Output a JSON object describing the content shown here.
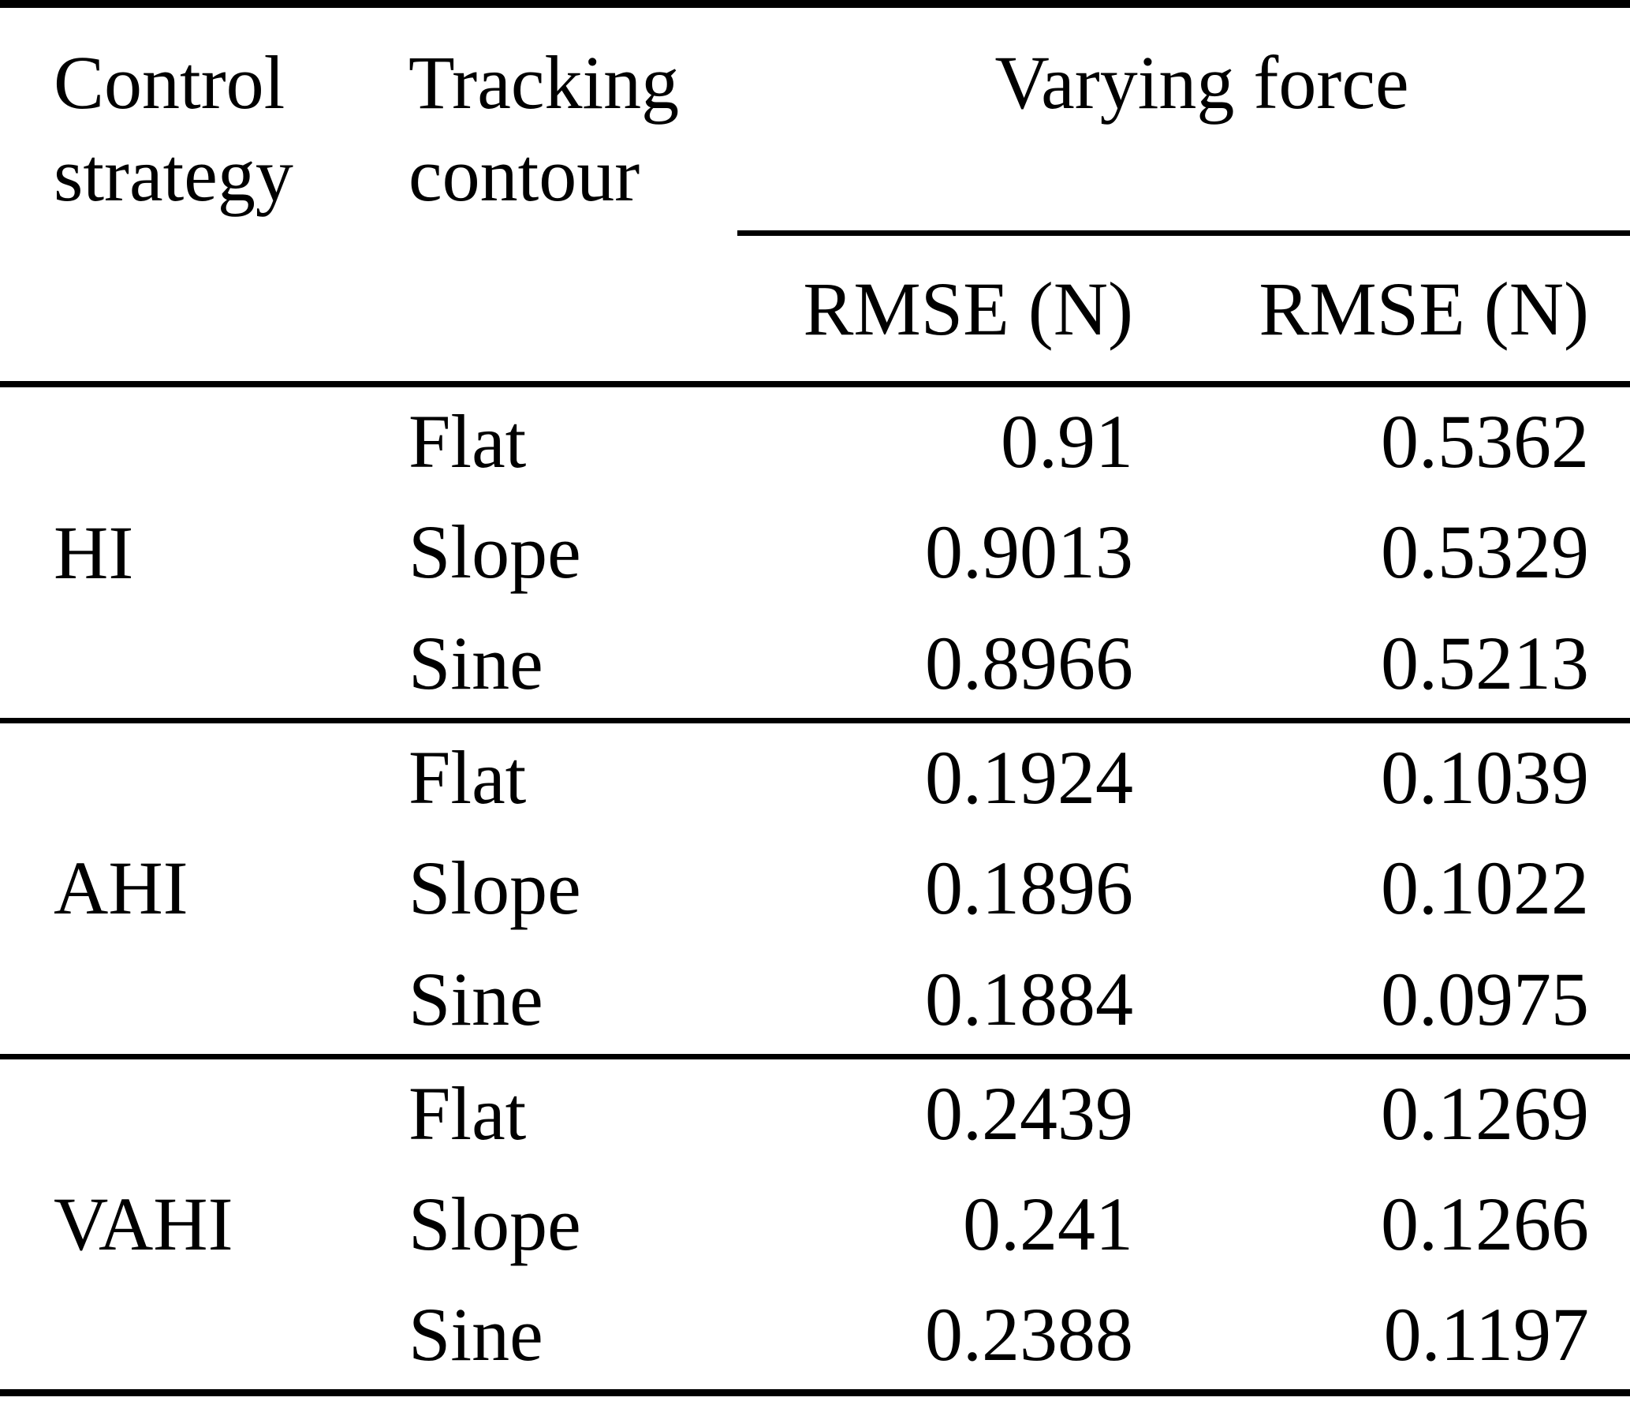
{
  "page": {
    "background_color": "#ffffff",
    "text_color": "#000000",
    "rule_color": "#000000"
  },
  "table": {
    "header": {
      "control_strategy": {
        "line1": "Control",
        "line2": "strategy"
      },
      "tracking_contour": {
        "line1": "Tracking",
        "line2": "contour"
      },
      "group_label": "Varying force",
      "sub_columns": [
        {
          "label": "RMSE (N)"
        },
        {
          "label": "RMSE (N)"
        }
      ]
    },
    "sections": [
      {
        "strategy": "HI",
        "rows": [
          {
            "contour": "Flat",
            "rmse_1": "0.91",
            "rmse_2": "0.5362"
          },
          {
            "contour": "Slope",
            "rmse_1": "0.9013",
            "rmse_2": "0.5329"
          },
          {
            "contour": "Sine",
            "rmse_1": "0.8966",
            "rmse_2": "0.5213"
          }
        ]
      },
      {
        "strategy": "AHI",
        "rows": [
          {
            "contour": "Flat",
            "rmse_1": "0.1924",
            "rmse_2": "0.1039"
          },
          {
            "contour": "Slope",
            "rmse_1": "0.1896",
            "rmse_2": "0.1022"
          },
          {
            "contour": "Sine",
            "rmse_1": "0.1884",
            "rmse_2": "0.0975"
          }
        ]
      },
      {
        "strategy": "VAHI",
        "rows": [
          {
            "contour": "Flat",
            "rmse_1": "0.2439",
            "rmse_2": "0.1269"
          },
          {
            "contour": "Slope",
            "rmse_1": "0.241",
            "rmse_2": "0.1266"
          },
          {
            "contour": "Sine",
            "rmse_1": "0.2388",
            "rmse_2": "0.1197"
          }
        ]
      }
    ]
  },
  "chart_data": {
    "type": "table",
    "title": "",
    "group_header": {
      "label": "Varying force",
      "spans_columns": [
        2,
        3
      ]
    },
    "columns": [
      "Control strategy",
      "Tracking contour",
      "RMSE (N)",
      "RMSE (N)"
    ],
    "rows": [
      [
        "HI",
        "Flat",
        0.91,
        0.5362
      ],
      [
        "HI",
        "Slope",
        0.9013,
        0.5329
      ],
      [
        "HI",
        "Sine",
        0.8966,
        0.5213
      ],
      [
        "AHI",
        "Flat",
        0.1924,
        0.1039
      ],
      [
        "AHI",
        "Slope",
        0.1896,
        0.1022
      ],
      [
        "AHI",
        "Sine",
        0.1884,
        0.0975
      ],
      [
        "VAHI",
        "Flat",
        0.2439,
        0.1269
      ],
      [
        "VAHI",
        "Slope",
        0.241,
        0.1266
      ],
      [
        "VAHI",
        "Sine",
        0.2388,
        0.1197
      ]
    ]
  }
}
